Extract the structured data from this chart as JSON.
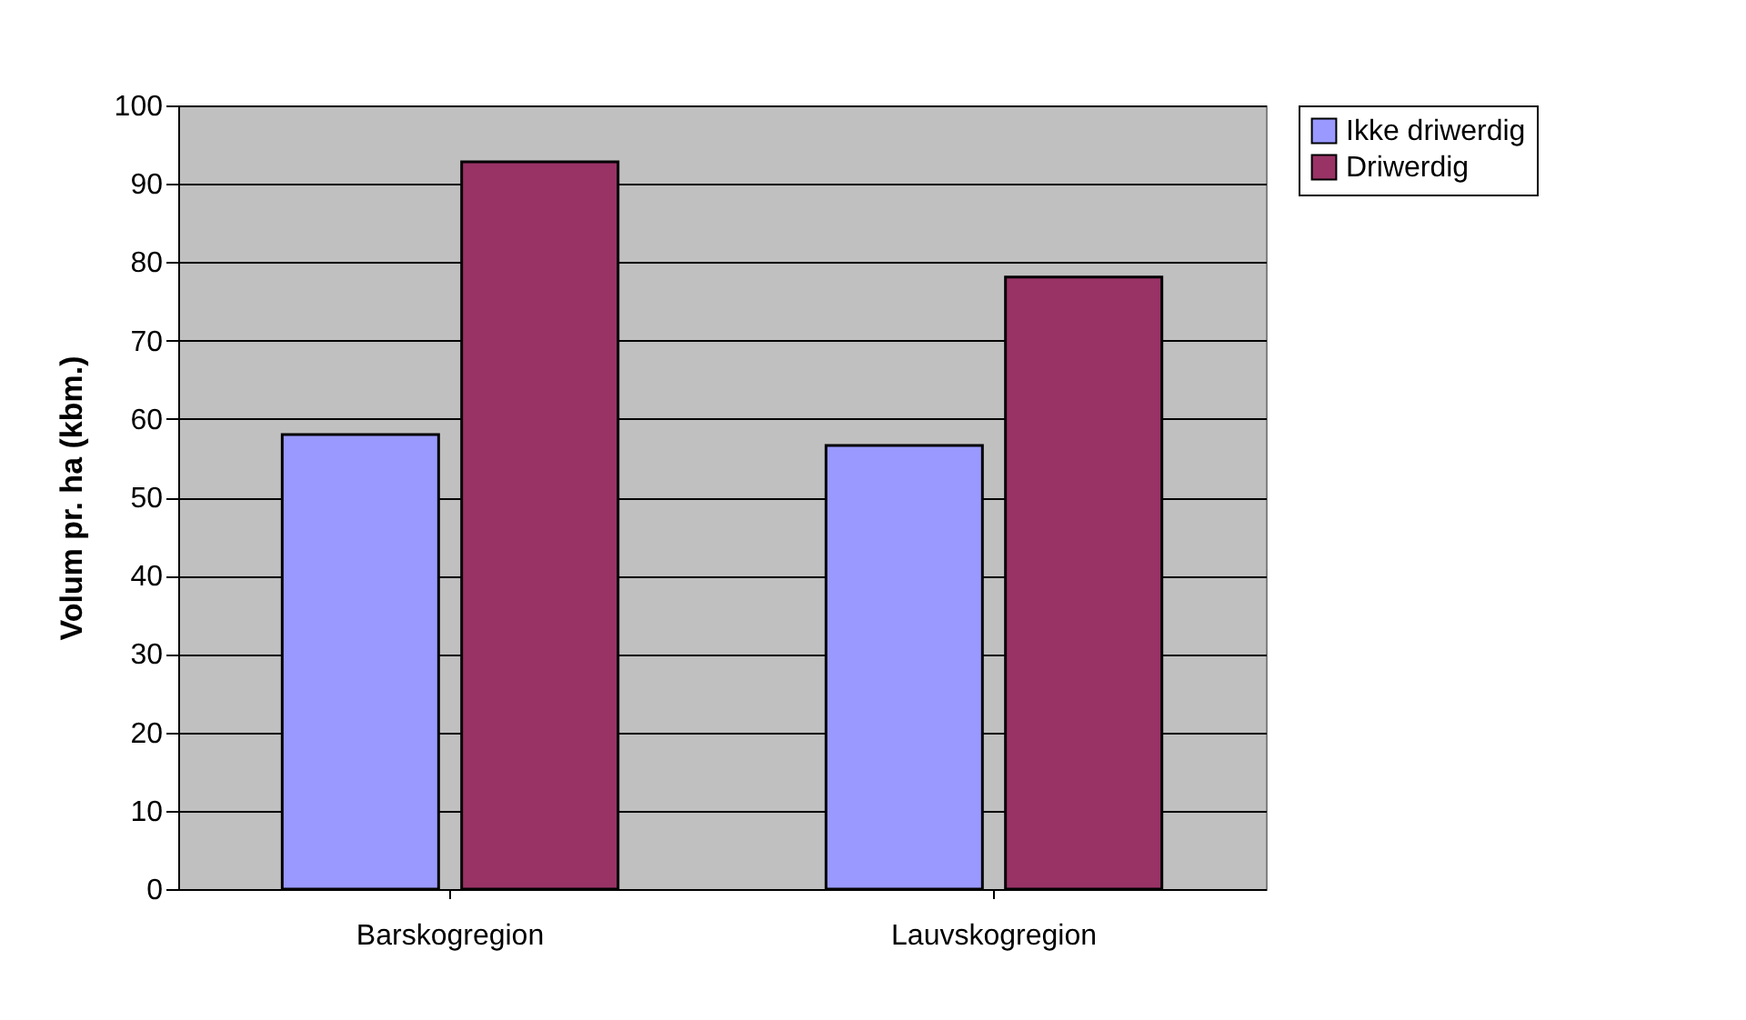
{
  "chart_data": {
    "type": "bar",
    "ylabel": "Volum pr. ha (kbm.)",
    "categories": [
      "Barskogregion",
      "Lauvskogregion"
    ],
    "series": [
      {
        "name": "Ikke driwerdig",
        "color": "#9999ff",
        "values": [
          58.0,
          56.6
        ]
      },
      {
        "name": "Driwerdig",
        "color": "#993366",
        "values": [
          92.8,
          78.1
        ]
      }
    ],
    "ylim": [
      0,
      100
    ],
    "yticks": [
      0,
      10,
      20,
      30,
      40,
      50,
      60,
      70,
      80,
      90,
      100
    ],
    "grid": "y",
    "legend": "right"
  }
}
